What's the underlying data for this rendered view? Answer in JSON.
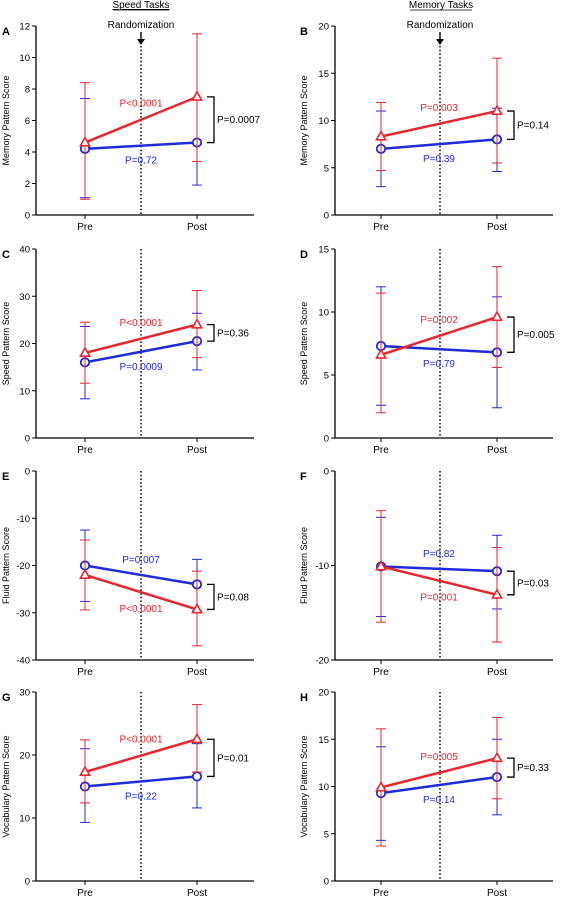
{
  "column_titles": [
    "Speed Tasks",
    "Memory Tasks"
  ],
  "randomization_label": "Randomization",
  "colors": {
    "red": "#e8262d",
    "blue": "#1f2bd8",
    "axis": "#000000"
  },
  "chart_data": [
    {
      "panel": "A",
      "type": "line",
      "ylabel": "Memory Pattern Score",
      "ylim": [
        0,
        12
      ],
      "yticks": [
        0,
        2,
        4,
        6,
        8,
        10,
        12
      ],
      "categories": [
        "Pre",
        "Post"
      ],
      "randomization_arrow": true,
      "series": [
        {
          "color": "red",
          "marker": "triangle",
          "values": [
            4.6,
            7.5
          ],
          "err_low": [
            1.0,
            3.4
          ],
          "err_high": [
            8.4,
            11.5
          ]
        },
        {
          "color": "blue",
          "marker": "circle",
          "values": [
            4.2,
            4.6
          ],
          "err_low": [
            1.1,
            1.9
          ],
          "err_high": [
            7.4,
            7.3
          ]
        }
      ],
      "p_red": "P<0.0001",
      "p_blue": "P=0.72",
      "p_between": "P=0.0007"
    },
    {
      "panel": "B",
      "type": "line",
      "ylabel": "Memory Pattern Score",
      "ylim": [
        0,
        20
      ],
      "yticks": [
        0,
        5,
        10,
        15,
        20
      ],
      "categories": [
        "Pre",
        "Post"
      ],
      "randomization_arrow": true,
      "series": [
        {
          "color": "red",
          "marker": "triangle",
          "values": [
            8.3,
            11.0
          ],
          "err_low": [
            4.7,
            5.5
          ],
          "err_high": [
            11.9,
            16.6
          ]
        },
        {
          "color": "blue",
          "marker": "circle",
          "values": [
            7.0,
            8.0
          ],
          "err_low": [
            3.0,
            4.6
          ],
          "err_high": [
            11.0,
            11.3
          ]
        }
      ],
      "p_red": "P=0.003",
      "p_blue": "P=0.39",
      "p_between": "P=0.14"
    },
    {
      "panel": "C",
      "type": "line",
      "ylabel": "Speed Pattern Score",
      "ylim": [
        0,
        40
      ],
      "yticks": [
        0,
        10,
        20,
        30,
        40
      ],
      "categories": [
        "Pre",
        "Post"
      ],
      "randomization_arrow": false,
      "series": [
        {
          "color": "red",
          "marker": "triangle",
          "values": [
            18.0,
            24.0
          ],
          "err_low": [
            11.6,
            17.0
          ],
          "err_high": [
            24.5,
            31.2
          ]
        },
        {
          "color": "blue",
          "marker": "circle",
          "values": [
            16.0,
            20.5
          ],
          "err_low": [
            8.3,
            14.4
          ],
          "err_high": [
            23.6,
            26.4
          ]
        }
      ],
      "p_red": "P<0.0001",
      "p_blue": "P=0.0009",
      "p_between": "P=0.36"
    },
    {
      "panel": "D",
      "type": "line",
      "ylabel": "Speed Pattern Score",
      "ylim": [
        0,
        15
      ],
      "yticks": [
        0,
        5,
        10,
        15
      ],
      "categories": [
        "Pre",
        "Post"
      ],
      "randomization_arrow": false,
      "series": [
        {
          "color": "red",
          "marker": "triangle",
          "values": [
            6.6,
            9.6
          ],
          "err_low": [
            2.0,
            5.6
          ],
          "err_high": [
            11.5,
            13.6
          ]
        },
        {
          "color": "blue",
          "marker": "circle",
          "values": [
            7.3,
            6.8
          ],
          "err_low": [
            2.6,
            2.4
          ],
          "err_high": [
            12.0,
            11.2
          ]
        }
      ],
      "p_red": "P=0.002",
      "p_blue": "P=0.79",
      "p_between": "P=0.005"
    },
    {
      "panel": "E",
      "type": "line",
      "ylabel": "Fluid Pattern Score",
      "ylim": [
        -40,
        0
      ],
      "yticks": [
        -40,
        -30,
        -20,
        -10,
        0
      ],
      "categories": [
        "Pre",
        "Post"
      ],
      "randomization_arrow": false,
      "series": [
        {
          "color": "red",
          "marker": "triangle",
          "values": [
            -22.0,
            -29.3
          ],
          "err_low": [
            -29.4,
            -37.0
          ],
          "err_high": [
            -14.6,
            -21.2
          ]
        },
        {
          "color": "blue",
          "marker": "circle",
          "values": [
            -20.0,
            -24.0
          ],
          "err_low": [
            -27.6,
            -29.6
          ],
          "err_high": [
            -12.5,
            -18.7
          ]
        }
      ],
      "p_red": "P<0.0001",
      "p_blue": "P=0.007",
      "p_between": "P=0.08"
    },
    {
      "panel": "F",
      "type": "line",
      "ylabel": "Fluid Pattern Score",
      "ylim": [
        -20,
        0
      ],
      "yticks": [
        -20,
        -10,
        0
      ],
      "categories": [
        "Pre",
        "Post"
      ],
      "randomization_arrow": false,
      "series": [
        {
          "color": "red",
          "marker": "triangle",
          "values": [
            -10.1,
            -13.1
          ],
          "err_low": [
            -16.0,
            -18.1
          ],
          "err_high": [
            -4.2,
            -8.1
          ]
        },
        {
          "color": "blue",
          "marker": "circle",
          "values": [
            -10.1,
            -10.6
          ],
          "err_low": [
            -15.4,
            -14.6
          ],
          "err_high": [
            -4.9,
            -6.8
          ]
        }
      ],
      "p_red": "P=0.001",
      "p_blue": "P=0.82",
      "p_between": "P=0.03"
    },
    {
      "panel": "G",
      "type": "line",
      "ylabel": "Vocabulary Pattern Score",
      "ylim": [
        0,
        30
      ],
      "yticks": [
        0,
        10,
        20,
        30
      ],
      "categories": [
        "Pre",
        "Post"
      ],
      "randomization_arrow": false,
      "series": [
        {
          "color": "red",
          "marker": "triangle",
          "values": [
            17.3,
            22.5
          ],
          "err_low": [
            12.4,
            17.3
          ],
          "err_high": [
            22.4,
            28.0
          ]
        },
        {
          "color": "blue",
          "marker": "circle",
          "values": [
            15.0,
            16.6
          ],
          "err_low": [
            9.3,
            11.6
          ],
          "err_high": [
            21.0,
            21.8
          ]
        }
      ],
      "p_red": "P<0.0001",
      "p_blue": "P=0.22",
      "p_between": "P=0.01"
    },
    {
      "panel": "H",
      "type": "line",
      "ylabel": "Vocabulary Pattern Score",
      "ylim": [
        0,
        20
      ],
      "yticks": [
        0,
        5,
        10,
        15,
        20
      ],
      "categories": [
        "Pre",
        "Post"
      ],
      "randomization_arrow": false,
      "series": [
        {
          "color": "red",
          "marker": "triangle",
          "values": [
            9.9,
            13.0
          ],
          "err_low": [
            3.7,
            8.7
          ],
          "err_high": [
            16.1,
            17.3
          ]
        },
        {
          "color": "blue",
          "marker": "circle",
          "values": [
            9.3,
            11.0
          ],
          "err_low": [
            4.3,
            7.0
          ],
          "err_high": [
            14.2,
            15.0
          ]
        }
      ],
      "p_red": "P=0.005",
      "p_blue": "P=0.14",
      "p_between": "P=0.33"
    }
  ]
}
